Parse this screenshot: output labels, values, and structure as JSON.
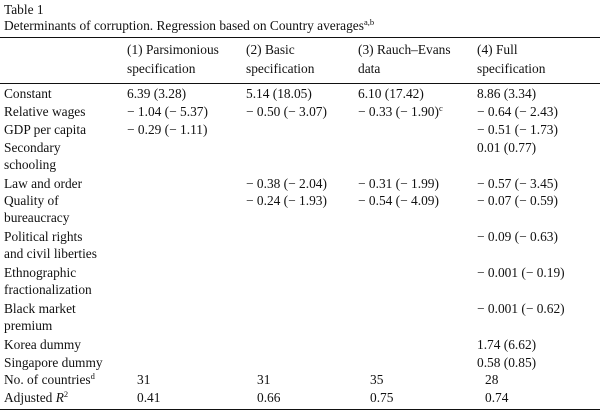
{
  "table": {
    "number": "Table 1",
    "caption": "Determinants of corruption. Regression based on Country averages",
    "caption_sup": "a,b",
    "columns": [
      [
        "(1) Parsimonious",
        "specification"
      ],
      [
        "(2) Basic",
        "specification"
      ],
      [
        "(3) Rauch–Evans",
        "data"
      ],
      [
        "(4) Full",
        "specification"
      ]
    ],
    "rows": [
      {
        "label": [
          "Constant"
        ],
        "cells": [
          "6.39 (3.28)",
          "5.14 (18.05)",
          "6.10 (17.42)",
          "8.86 (3.34)"
        ]
      },
      {
        "label": [
          "Relative wages"
        ],
        "cells": [
          "− 1.04 (− 5.37)",
          "− 0.50 (− 3.07)",
          "− 0.33 (− 1.90)",
          "− 0.64 (− 2.43)"
        ],
        "sup3": "c"
      },
      {
        "label": [
          "GDP per capita"
        ],
        "cells": [
          "− 0.29 (− 1.11)",
          "",
          "",
          "− 0.51 (− 1.73)"
        ]
      },
      {
        "label": [
          "Secondary",
          "schooling"
        ],
        "cells": [
          "",
          "",
          "",
          "0.01 (0.77)"
        ]
      },
      {
        "label": [
          "Law and order"
        ],
        "cells": [
          "",
          "− 0.38 (− 2.04)",
          "− 0.31 (− 1.99)",
          "− 0.57 (− 3.45)"
        ]
      },
      {
        "label": [
          "Quality of",
          "bureaucracy"
        ],
        "cells": [
          "",
          "− 0.24 (− 1.93)",
          "− 0.54 (− 4.09)",
          "− 0.07 (− 0.59)"
        ]
      },
      {
        "label": [
          "Political rights",
          "and civil liberties"
        ],
        "cells": [
          "",
          "",
          "",
          "− 0.09 (− 0.63)"
        ]
      },
      {
        "label": [
          "Ethnographic",
          "fractionalization"
        ],
        "cells": [
          "",
          "",
          "",
          "− 0.001 (− 0.19)"
        ]
      },
      {
        "label": [
          "Black market",
          "premium"
        ],
        "cells": [
          "",
          "",
          "",
          "− 0.001 (− 0.62)"
        ]
      },
      {
        "label": [
          "Korea dummy"
        ],
        "cells": [
          "",
          "",
          "",
          "1.74 (6.62)"
        ]
      },
      {
        "label": [
          "Singapore dummy"
        ],
        "cells": [
          "",
          "",
          "",
          "0.58 (0.85)"
        ]
      },
      {
        "label": [
          "No. of countries"
        ],
        "label_sup": "d",
        "cells": [
          "31",
          "31",
          "35",
          "28"
        ]
      },
      {
        "label": [
          "Adjusted R"
        ],
        "label_sup": "2",
        "cells": [
          "0.41",
          "0.66",
          "0.75",
          "0.74"
        ]
      }
    ]
  }
}
